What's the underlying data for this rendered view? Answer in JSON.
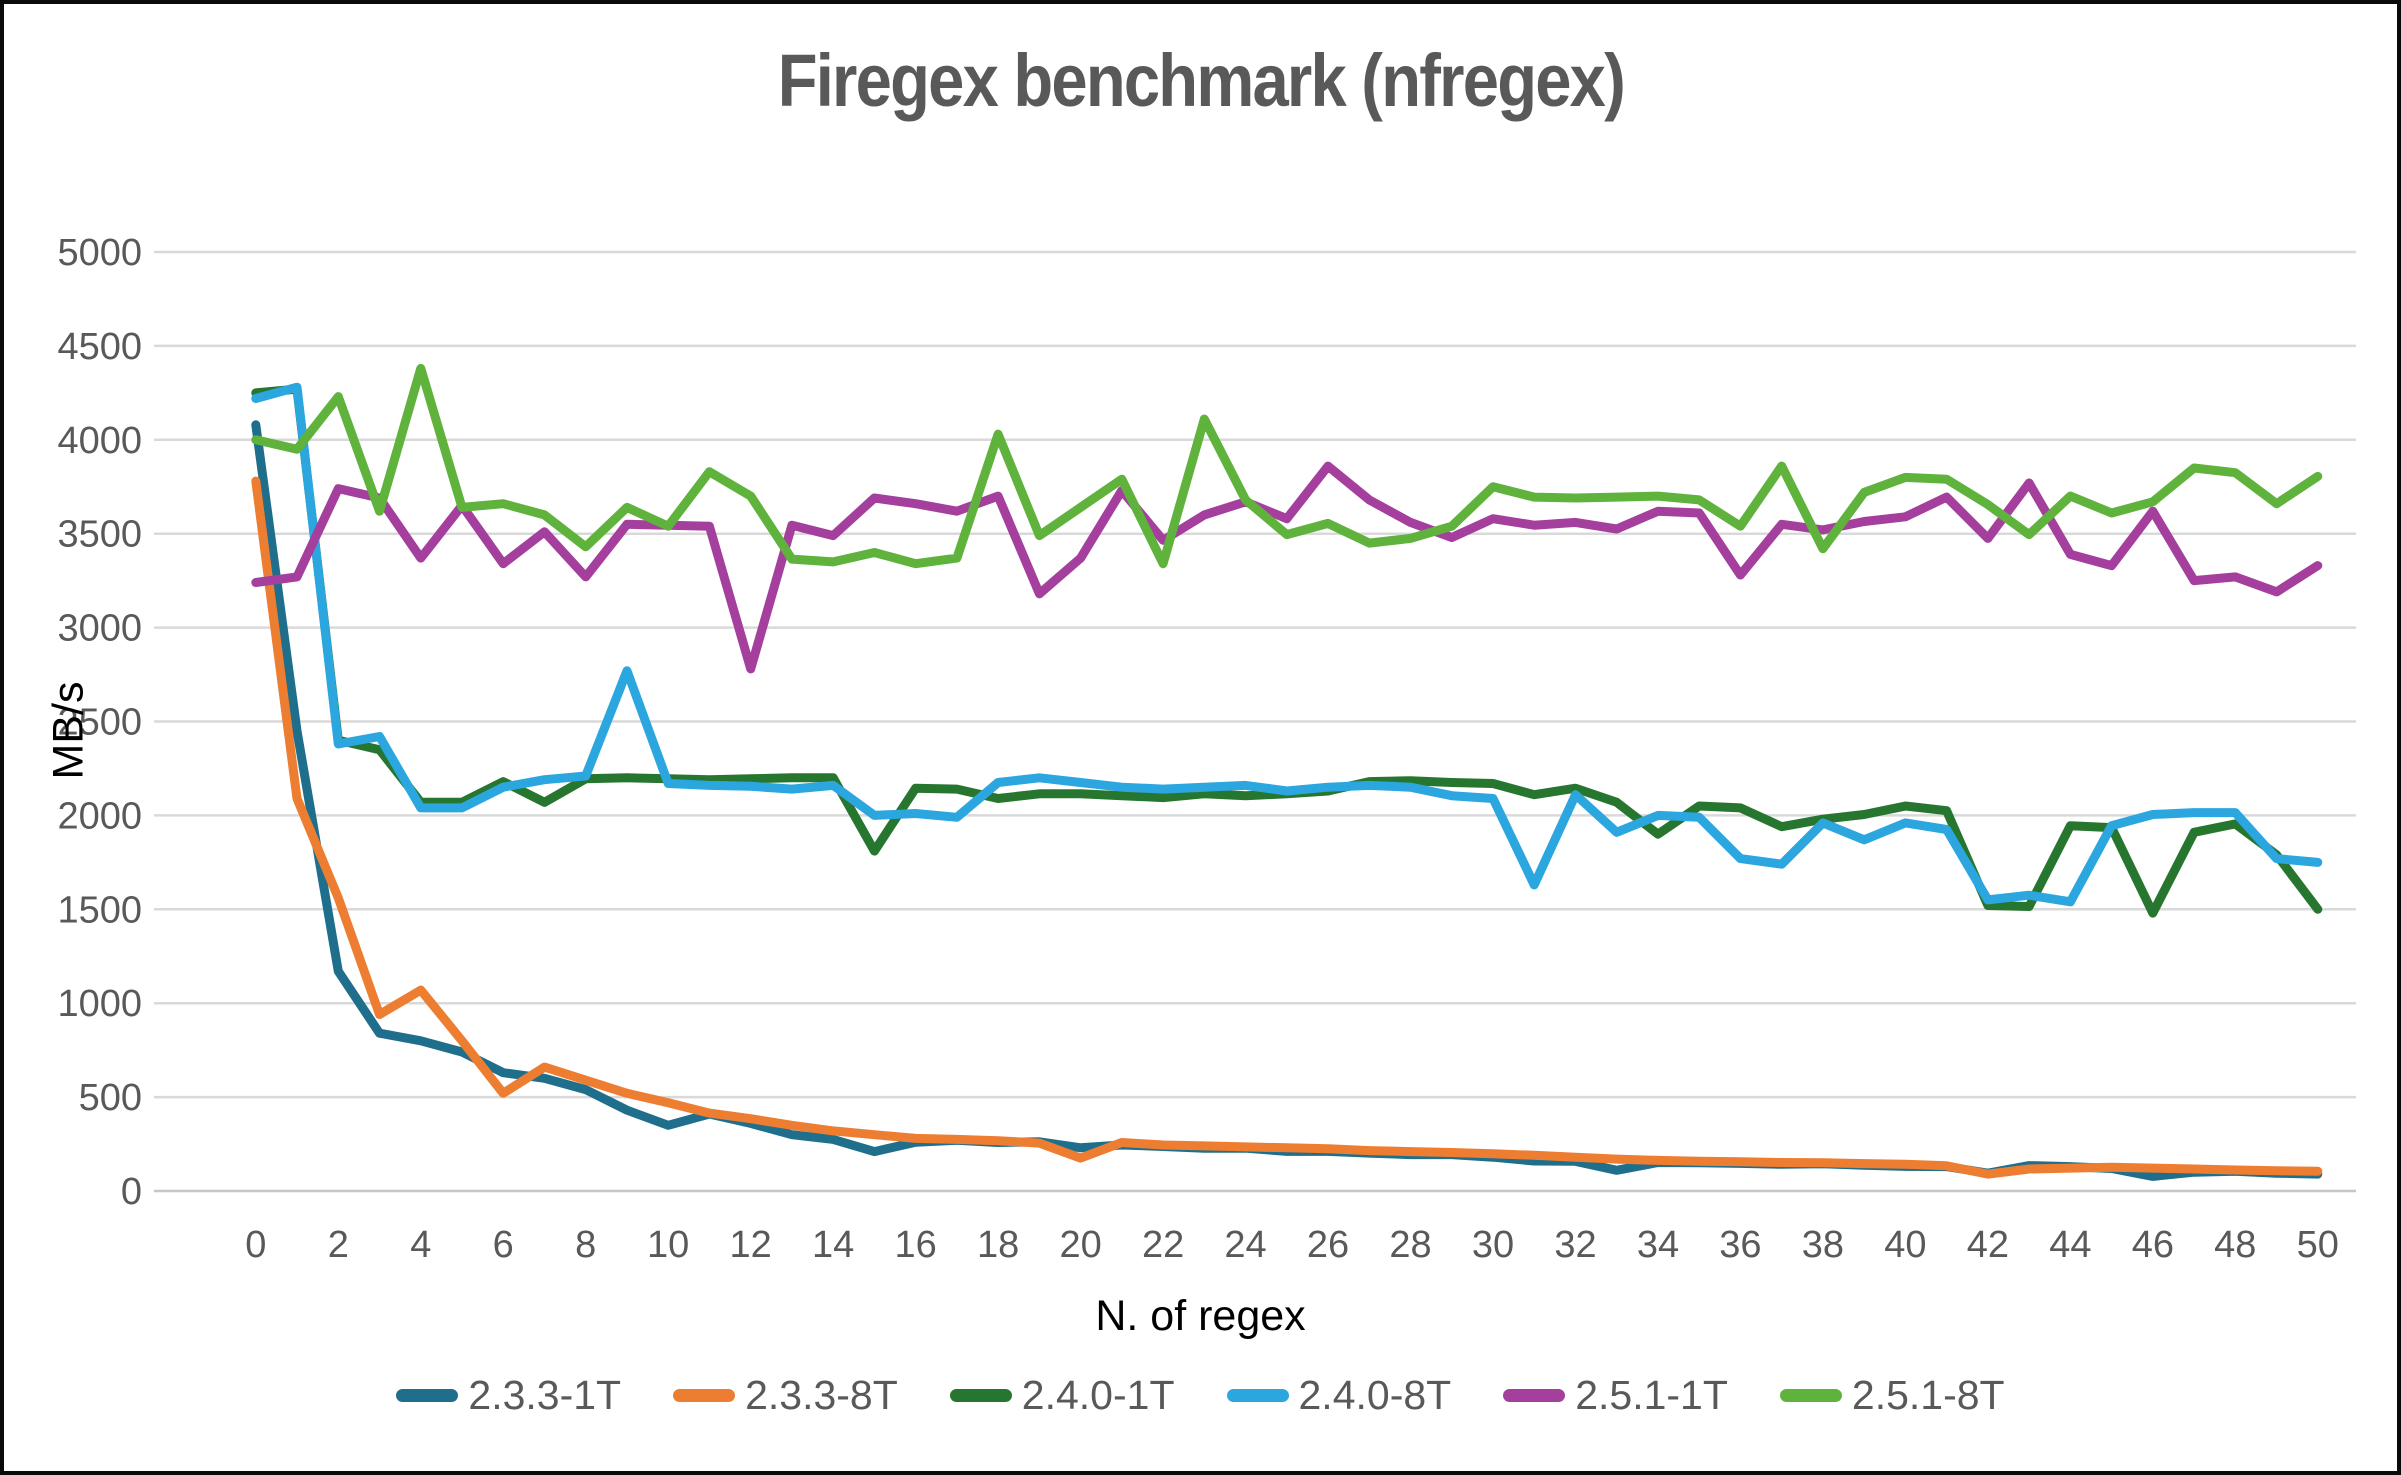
{
  "chart_data": {
    "type": "line",
    "title": "Firegex benchmark (nfregex)",
    "xlabel": "N. of regex",
    "ylabel": "MB/s",
    "grid": true,
    "legend_position": "bottom",
    "x_axis": {
      "min": 0,
      "max": 50,
      "tick_step": 2
    },
    "y_axis": {
      "min": 0,
      "max": 5000,
      "tick_step": 500
    },
    "colors": {
      "grid_line": "#d9d9d9",
      "axis_line": "#c6c6c6",
      "tick_label": "#595959",
      "title": "#595959",
      "axis_title": "#000000"
    },
    "series": [
      {
        "name": "2.3.3-1T",
        "color": "#1f6e8c",
        "values": [
          4080,
          2450,
          1170,
          840,
          800,
          740,
          630,
          600,
          540,
          430,
          350,
          410,
          360,
          300,
          275,
          210,
          260,
          270,
          258,
          262,
          230,
          245,
          237,
          228,
          228,
          211,
          211,
          202,
          194,
          194,
          180,
          160,
          158,
          110,
          152,
          150,
          147,
          142,
          145,
          137,
          131,
          130,
          95,
          135,
          130,
          120,
          78,
          100,
          105,
          95,
          90
        ]
      },
      {
        "name": "2.3.3-8T",
        "color": "#ed7d31",
        "values": [
          3780,
          2090,
          1560,
          940,
          1070,
          800,
          520,
          660,
          590,
          520,
          470,
          415,
          385,
          350,
          320,
          300,
          280,
          275,
          268,
          255,
          175,
          258,
          245,
          240,
          235,
          230,
          225,
          215,
          210,
          205,
          198,
          190,
          180,
          170,
          163,
          158,
          156,
          152,
          150,
          146,
          142,
          134,
          90,
          117,
          122,
          126,
          122,
          117,
          112,
          108,
          105
        ]
      },
      {
        "name": "2.4.0-1T",
        "color": "#27762f",
        "values": [
          4250,
          4270,
          2400,
          2350,
          2070,
          2070,
          2180,
          2070,
          2195,
          2200,
          2195,
          2190,
          2195,
          2200,
          2200,
          1810,
          2145,
          2140,
          2090,
          2115,
          2115,
          2105,
          2095,
          2115,
          2105,
          2115,
          2130,
          2180,
          2185,
          2175,
          2170,
          2110,
          2145,
          2070,
          1900,
          2050,
          2040,
          1940,
          1980,
          2005,
          2050,
          2025,
          1520,
          1515,
          1945,
          1935,
          1480,
          1910,
          1955,
          1790,
          1500
        ]
      },
      {
        "name": "2.4.0-8T",
        "color": "#2ba6df",
        "values": [
          4220,
          4280,
          2380,
          2420,
          2040,
          2040,
          2150,
          2190,
          2210,
          2770,
          2170,
          2160,
          2155,
          2140,
          2160,
          2000,
          2010,
          1990,
          2175,
          2200,
          2175,
          2150,
          2140,
          2150,
          2160,
          2130,
          2150,
          2160,
          2150,
          2105,
          2090,
          1630,
          2110,
          1910,
          2000,
          1990,
          1770,
          1740,
          1960,
          1870,
          1960,
          1925,
          1550,
          1575,
          1540,
          1945,
          2005,
          2015,
          2015,
          1770,
          1750
        ]
      },
      {
        "name": "2.5.1-1T",
        "color": "#a43f9e",
        "values": [
          3240,
          3270,
          3740,
          3690,
          3370,
          3650,
          3340,
          3510,
          3270,
          3550,
          3545,
          3540,
          2780,
          3545,
          3490,
          3690,
          3660,
          3620,
          3700,
          3180,
          3370,
          3730,
          3465,
          3600,
          3670,
          3580,
          3860,
          3680,
          3560,
          3480,
          3580,
          3545,
          3560,
          3525,
          3620,
          3610,
          3280,
          3550,
          3520,
          3565,
          3590,
          3695,
          3475,
          3770,
          3390,
          3330,
          3620,
          3250,
          3270,
          3190,
          3330
        ]
      },
      {
        "name": "2.5.1-8T",
        "color": "#5fb33c",
        "values": [
          4000,
          3950,
          4230,
          3620,
          4380,
          3640,
          3660,
          3600,
          3430,
          3640,
          3540,
          3830,
          3700,
          3365,
          3350,
          3400,
          3340,
          3370,
          4030,
          3490,
          3640,
          3790,
          3340,
          4110,
          3680,
          3495,
          3555,
          3450,
          3475,
          3540,
          3750,
          3695,
          3690,
          3695,
          3700,
          3680,
          3540,
          3860,
          3420,
          3720,
          3800,
          3790,
          3655,
          3495,
          3700,
          3610,
          3670,
          3850,
          3825,
          3660,
          3805
        ]
      }
    ]
  }
}
